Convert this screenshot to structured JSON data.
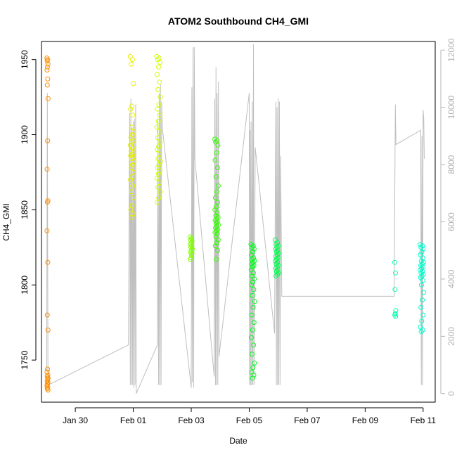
{
  "chart_data": {
    "type": "scatter",
    "title": "ATOM2 Southbound CH4_GMI",
    "xlabel": "Date",
    "ylabel": "CH4_GMI",
    "x_axis": {
      "type": "date",
      "range": [
        "2017-01-28T20:00",
        "2017-02-11T10:00"
      ],
      "ticks": [
        {
          "date": "2017-01-30",
          "label": "Jan 30"
        },
        {
          "date": "2017-02-01",
          "label": "Feb 01"
        },
        {
          "date": "2017-02-03",
          "label": "Feb 03"
        },
        {
          "date": "2017-02-05",
          "label": "Feb 05"
        },
        {
          "date": "2017-02-07",
          "label": "Feb 07"
        },
        {
          "date": "2017-02-09",
          "label": "Feb 09"
        },
        {
          "date": "2017-02-11",
          "label": "Feb 11"
        }
      ]
    },
    "y_axis_left": {
      "range": [
        1722,
        1962
      ],
      "ticks": [
        "1750",
        "1800",
        "1850",
        "1900",
        "1950"
      ]
    },
    "y_axis_right": {
      "range": [
        -300,
        12300
      ],
      "ticks": [
        "0",
        "2000",
        "4000",
        "6000",
        "8000",
        "10000",
        "12000"
      ],
      "color": "#b3b3b3"
    },
    "grid": false,
    "legend": "none",
    "point_style": "open circle",
    "altitude_line_color": "#bfbfbf",
    "flights": [
      {
        "center": "2017-01-29T01:00",
        "spread_hours": 1.0,
        "color": "#ff8c00",
        "values": [
          1951,
          1950,
          1949,
          1947,
          1945,
          1943,
          1937,
          1933,
          1924,
          1896,
          1877,
          1856,
          1855,
          1836,
          1815,
          1780,
          1770,
          1744,
          1742,
          1740,
          1739,
          1738,
          1737,
          1736,
          1735,
          1734,
          1733,
          1732,
          1731,
          1730
        ]
      },
      {
        "center": "2017-01-31T23:00",
        "spread_hours": 3.0,
        "color": "#e6f000",
        "values": [
          1952,
          1950,
          1947,
          1934,
          1919,
          1917,
          1913,
          1905,
          1902,
          1900,
          1898,
          1896,
          1895,
          1893,
          1891,
          1889,
          1888,
          1887,
          1886,
          1885,
          1884,
          1882,
          1880,
          1878,
          1875,
          1872,
          1870,
          1866,
          1862,
          1858,
          1853,
          1850,
          1847,
          1845
        ]
      },
      {
        "center": "2017-02-01T21:00",
        "spread_hours": 3.0,
        "color": "#ccff00",
        "values": [
          1952,
          1951,
          1950,
          1948,
          1945,
          1940,
          1935,
          1930,
          1925,
          1920,
          1917,
          1913,
          1909,
          1905,
          1902,
          1898,
          1895,
          1892,
          1890,
          1887,
          1884,
          1882,
          1880,
          1878,
          1876,
          1874,
          1871,
          1868,
          1865,
          1862,
          1858,
          1855
        ]
      },
      {
        "center": "2017-02-03T00:00",
        "spread_hours": 2.0,
        "color": "#80ff00",
        "values": [
          1832,
          1831,
          1830,
          1829,
          1828,
          1827,
          1826,
          1825,
          1824,
          1823,
          1822,
          1821,
          1818,
          1817,
          1820
        ]
      },
      {
        "center": "2017-02-03T21:00",
        "spread_hours": 3.0,
        "color": "#33ff00",
        "values": [
          1897,
          1896,
          1895,
          1893,
          1888,
          1883,
          1878,
          1872,
          1866,
          1862,
          1858,
          1855,
          1852,
          1850,
          1848,
          1846,
          1845,
          1844,
          1843,
          1842,
          1841,
          1840,
          1839,
          1838,
          1837,
          1836,
          1835,
          1834,
          1832,
          1830,
          1828,
          1826,
          1823,
          1817
        ]
      },
      {
        "center": "2017-02-05T03:00",
        "spread_hours": 3.0,
        "color": "#00ff1a",
        "values": [
          1827,
          1826,
          1825,
          1824,
          1822,
          1820,
          1818,
          1817,
          1816,
          1815,
          1814,
          1813,
          1812,
          1810,
          1808,
          1806,
          1804,
          1802,
          1800,
          1797,
          1793,
          1789,
          1785,
          1780,
          1775,
          1770,
          1765,
          1760,
          1754,
          1748,
          1745,
          1742,
          1740,
          1738
        ]
      },
      {
        "center": "2017-02-05T23:00",
        "spread_hours": 3.0,
        "color": "#00ff4d",
        "values": [
          1830,
          1828,
          1827,
          1826,
          1825,
          1824,
          1823,
          1822,
          1821,
          1820,
          1819,
          1818,
          1817,
          1816,
          1815,
          1814,
          1813,
          1812,
          1811,
          1810,
          1809,
          1808,
          1807,
          1806
        ]
      },
      {
        "center": "2017-02-10T01:00",
        "spread_hours": 1.0,
        "color": "#00ffb3",
        "values": [
          1815,
          1808,
          1797,
          1783,
          1781,
          1780,
          1779
        ]
      },
      {
        "center": "2017-02-10T23:00",
        "spread_hours": 3.0,
        "color": "#00ffcc",
        "values": [
          1827,
          1826,
          1825,
          1824,
          1822,
          1820,
          1818,
          1816,
          1815,
          1814,
          1813,
          1812,
          1811,
          1810,
          1809,
          1808,
          1807,
          1806,
          1805,
          1803,
          1800,
          1795,
          1790,
          1785,
          1780,
          1776,
          1772,
          1770,
          1769
        ]
      }
    ],
    "altitude_series": {
      "axis": "right",
      "points": [
        [
          "2017-01-29T00:20",
          800
        ],
        [
          "2017-01-29T00:50",
          10500
        ],
        [
          "2017-01-29T01:20",
          700
        ],
        [
          "2017-01-29T01:40",
          300
        ],
        [
          "2017-01-31T20:00",
          1700
        ],
        [
          "2017-01-31T21:00",
          9800
        ],
        [
          "2017-01-31T21:30",
          300
        ],
        [
          "2017-01-31T22:00",
          10300
        ],
        [
          "2017-01-31T22:30",
          300
        ],
        [
          "2017-01-31T23:00",
          9300
        ],
        [
          "2017-01-31T23:30",
          300
        ],
        [
          "2017-02-01T00:00",
          9500
        ],
        [
          "2017-02-01T00:30",
          200
        ],
        [
          "2017-02-01T01:00",
          9600
        ],
        [
          "2017-02-01T01:30",
          300
        ],
        [
          "2017-02-01T02:00",
          10100
        ],
        [
          "2017-02-01T02:30",
          0
        ],
        [
          "2017-02-01T20:00",
          1700
        ],
        [
          "2017-02-01T20:20",
          9600
        ],
        [
          "2017-02-01T21:00",
          300
        ],
        [
          "2017-02-01T21:30",
          10500
        ],
        [
          "2017-02-01T22:00",
          300
        ],
        [
          "2017-02-01T22:30",
          10800
        ],
        [
          "2017-02-01T23:00",
          300
        ],
        [
          "2017-02-01T23:30",
          10200
        ],
        [
          "2017-02-02T00:00",
          9300
        ],
        [
          "2017-02-03T00:00",
          200
        ],
        [
          "2017-02-03T00:30",
          10700
        ],
        [
          "2017-02-03T01:00",
          400
        ],
        [
          "2017-02-03T01:30",
          12100
        ],
        [
          "2017-02-03T02:00",
          200
        ],
        [
          "2017-02-03T02:30",
          12100
        ],
        [
          "2017-02-03T03:00",
          8200
        ],
        [
          "2017-02-03T19:00",
          600
        ],
        [
          "2017-02-03T19:30",
          10300
        ],
        [
          "2017-02-03T20:00",
          300
        ],
        [
          "2017-02-03T20:30",
          11400
        ],
        [
          "2017-02-03T21:00",
          300
        ],
        [
          "2017-02-03T21:30",
          10500
        ],
        [
          "2017-02-03T22:00",
          300
        ],
        [
          "2017-02-03T22:30",
          10900
        ],
        [
          "2017-02-03T23:00",
          1300
        ],
        [
          "2017-02-05T00:00",
          10500
        ],
        [
          "2017-02-05T00:20",
          300
        ],
        [
          "2017-02-05T00:40",
          9200
        ],
        [
          "2017-02-05T01:00",
          300
        ],
        [
          "2017-02-05T01:30",
          9500
        ],
        [
          "2017-02-05T02:00",
          300
        ],
        [
          "2017-02-05T02:30",
          10200
        ],
        [
          "2017-02-05T03:00",
          300
        ],
        [
          "2017-02-05T03:30",
          12200
        ],
        [
          "2017-02-05T04:00",
          300
        ],
        [
          "2017-02-05T05:00",
          8600
        ],
        [
          "2017-02-05T21:00",
          2100
        ],
        [
          "2017-02-05T22:00",
          10200
        ],
        [
          "2017-02-05T22:30",
          300
        ],
        [
          "2017-02-05T23:00",
          10000
        ],
        [
          "2017-02-05T23:30",
          300
        ],
        [
          "2017-02-06T00:00",
          10300
        ],
        [
          "2017-02-06T00:30",
          300
        ],
        [
          "2017-02-06T01:00",
          10200
        ],
        [
          "2017-02-06T01:30",
          300
        ],
        [
          "2017-02-06T02:00",
          8300
        ],
        [
          "2017-02-06T03:00",
          3400
        ],
        [
          "2017-02-10T00:00",
          3400
        ],
        [
          "2017-02-10T01:00",
          10100
        ],
        [
          "2017-02-10T01:30",
          8700
        ],
        [
          "2017-02-10T22:00",
          9200
        ],
        [
          "2017-02-10T22:30",
          300
        ],
        [
          "2017-02-10T23:00",
          9000
        ],
        [
          "2017-02-10T23:30",
          300
        ],
        [
          "2017-02-11T00:00",
          9900
        ],
        [
          "2017-02-11T00:30",
          9600
        ],
        [
          "2017-02-11T01:00",
          8200
        ]
      ]
    }
  }
}
